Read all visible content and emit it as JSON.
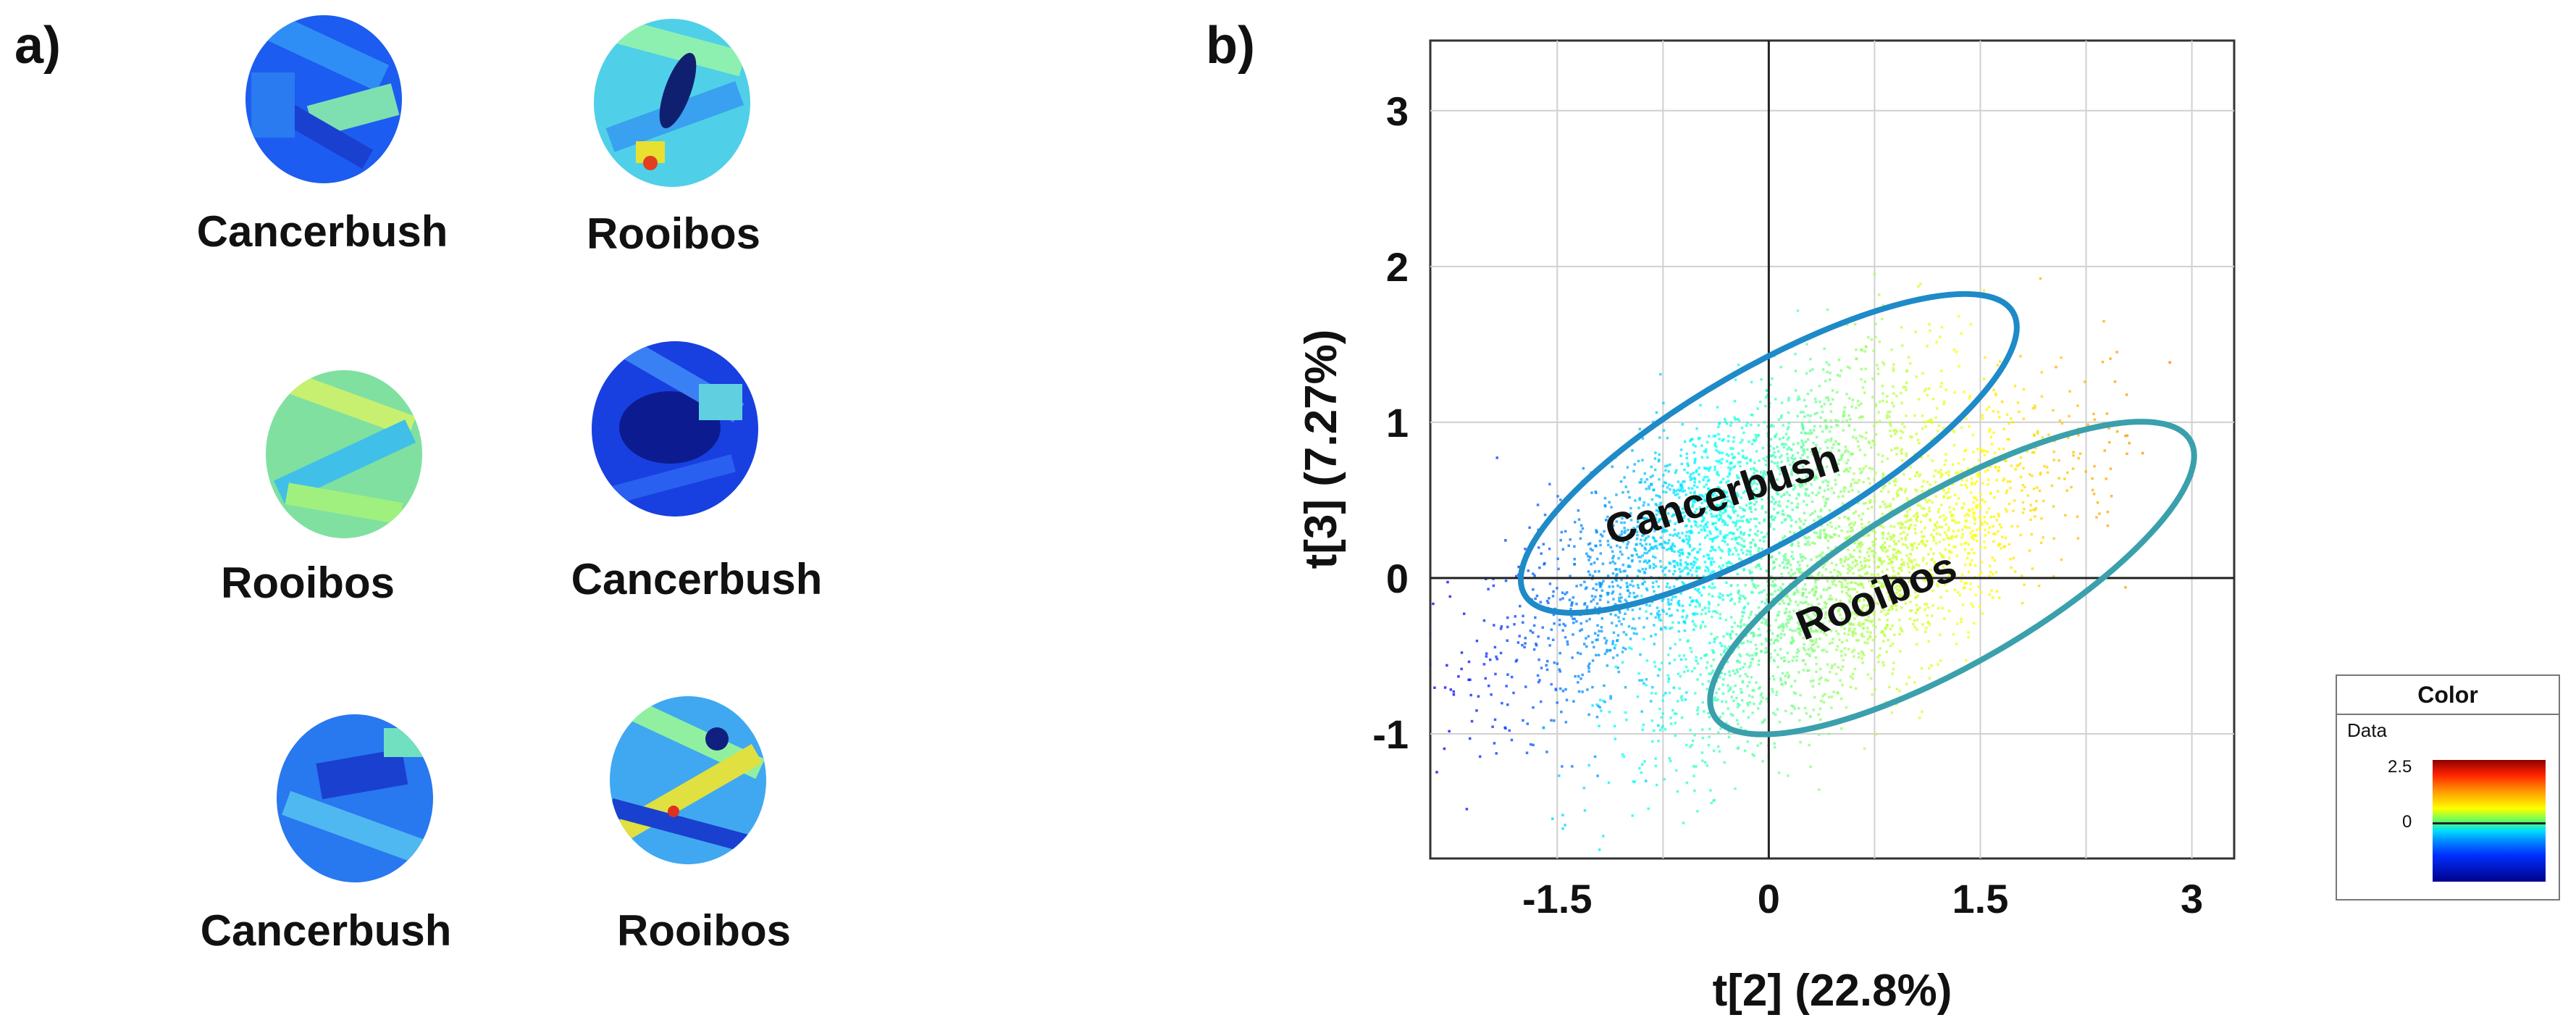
{
  "panel_a": {
    "label": "a)",
    "samples": [
      {
        "name": "Cancerbush",
        "image_icon": "hyperspectral-score-image"
      },
      {
        "name": "Rooibos",
        "image_icon": "hyperspectral-score-image"
      },
      {
        "name": "Rooibos",
        "image_icon": "hyperspectral-score-image"
      },
      {
        "name": "Cancerbush",
        "image_icon": "hyperspectral-score-image"
      },
      {
        "name": "Cancerbush",
        "image_icon": "hyperspectral-score-image"
      },
      {
        "name": "Rooibos",
        "image_icon": "hyperspectral-score-image"
      }
    ]
  },
  "panel_b": {
    "label": "b)"
  },
  "legend": {
    "title": "Color",
    "subtitle": "Data",
    "ticks": [
      "2.5",
      "0"
    ]
  },
  "chart_data": {
    "type": "scatter",
    "xlabel": "t[2] (22.8%)",
    "ylabel": "t[3] (7.27%)",
    "xlim": [
      -2.4,
      3.3
    ],
    "ylim": [
      -1.8,
      3.45
    ],
    "x_ticks": [
      -1.5,
      0,
      1.5,
      3
    ],
    "x_tick_labels": [
      "-1.5",
      "0",
      "1.5",
      "3"
    ],
    "y_ticks": [
      -1,
      0,
      1,
      2,
      3
    ],
    "y_tick_labels": [
      "-1",
      "0",
      "1",
      "2",
      "3"
    ],
    "grid": true,
    "x_grid": [
      -1.5,
      -0.75,
      0,
      0.75,
      1.5,
      2.25,
      3
    ],
    "color_scale": {
      "label": "Data",
      "min": 0,
      "max": 2.5
    },
    "clusters": [
      {
        "name": "Cancerbush",
        "center": [
          -0.45,
          0.35
        ],
        "spread": [
          0.75,
          0.35
        ],
        "tilt": 0.55,
        "n": 2200,
        "color_value_range": [
          -0.6,
          1.2
        ]
      },
      {
        "name": "Rooibos",
        "center": [
          0.6,
          -0.05
        ],
        "spread": [
          0.75,
          0.35
        ],
        "tilt": 0.55,
        "n": 2200,
        "color_value_range": [
          0.3,
          1.6
        ]
      }
    ],
    "ellipses": [
      {
        "name": "Cancerbush",
        "color": "#1e8ac8",
        "center": [
          0.0,
          0.8
        ],
        "rx": 2.0,
        "ry": 0.55,
        "angle_deg": 30
      },
      {
        "name": "Rooibos",
        "color": "#3aa0ac",
        "center": [
          1.3,
          0.0
        ],
        "rx": 1.95,
        "ry": 0.55,
        "angle_deg": 30
      }
    ],
    "annotations": [
      {
        "text": "Cancerbush",
        "x": -0.3,
        "y": 0.45,
        "angle_deg": -18
      },
      {
        "text": "Rooibos",
        "x": 0.8,
        "y": -0.2,
        "angle_deg": -22
      }
    ]
  }
}
